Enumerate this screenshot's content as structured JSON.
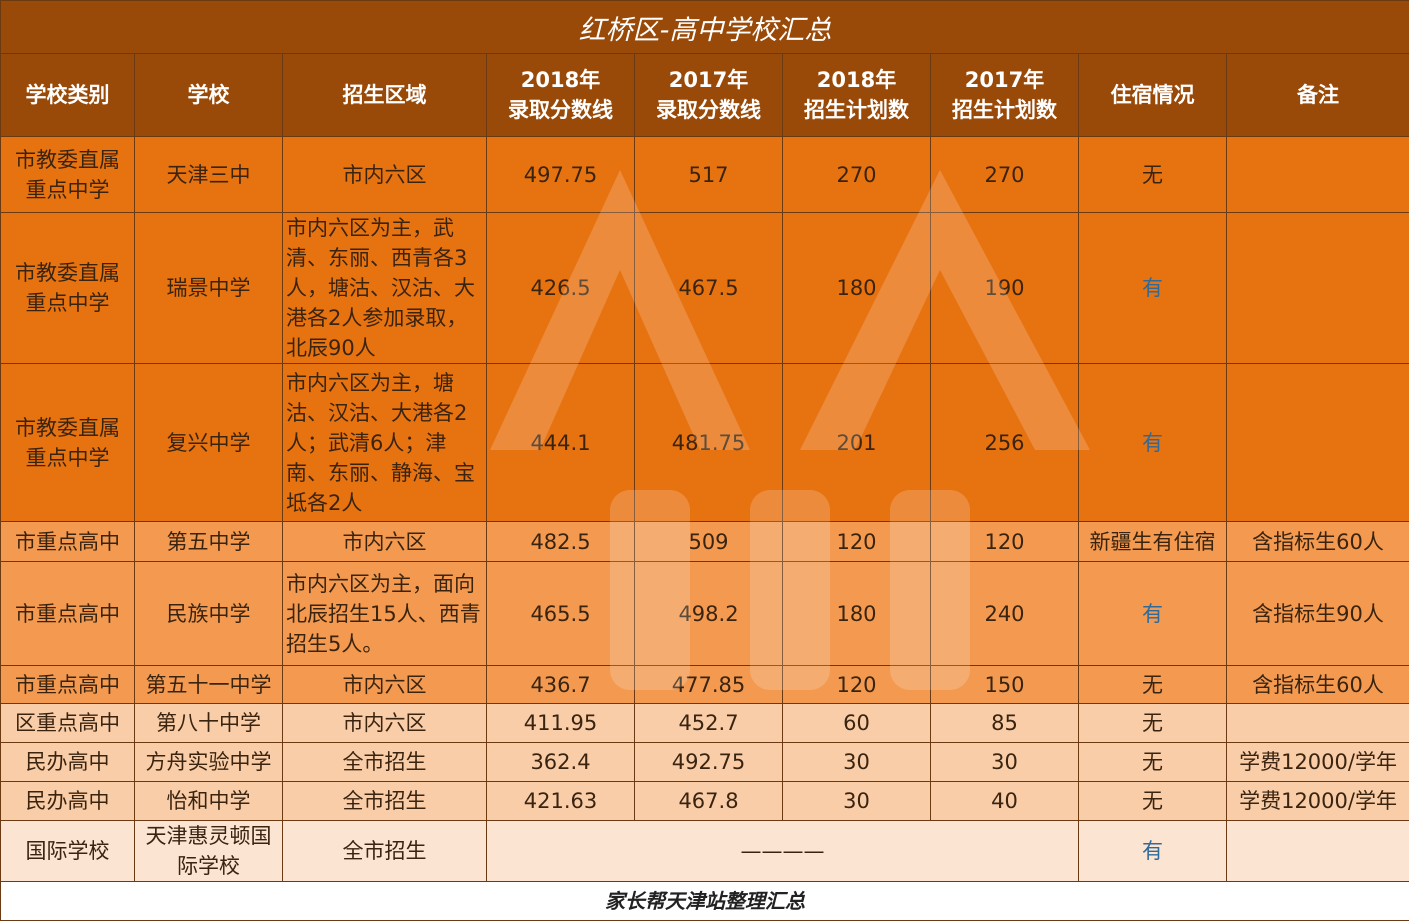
{
  "title": "红桥区-高中学校汇总",
  "headers": [
    {
      "line1": "学校类别",
      "line2": ""
    },
    {
      "line1": "学校",
      "line2": ""
    },
    {
      "line1": "招生区域",
      "line2": ""
    },
    {
      "line1": "2018年",
      "line2": "录取分数线"
    },
    {
      "line1": "2017年",
      "line2": "录取分数线"
    },
    {
      "line1": "2018年",
      "line2": "招生计划数"
    },
    {
      "line1": "2017年",
      "line2": "招生计划数"
    },
    {
      "line1": "住宿情况",
      "line2": ""
    },
    {
      "line1": "备注",
      "line2": ""
    }
  ],
  "rows": [
    {
      "category": "市教委直属重点中学",
      "school": "天津三中",
      "area": "市内六区",
      "score2018": "497.75",
      "score2017": "517",
      "plan2018": "270",
      "plan2017": "270",
      "lodging": "无",
      "note": ""
    },
    {
      "category": "市教委直属重点中学",
      "school": "瑞景中学",
      "area": "市内六区为主，武清、东丽、西青各3人，塘沽、汉沽、大港各2人参加录取，北辰90人",
      "score2018": "426.5",
      "score2017": "467.5",
      "plan2018": "180",
      "plan2017": "190",
      "lodging": "有",
      "note": ""
    },
    {
      "category": "市教委直属重点中学",
      "school": "复兴中学",
      "area": "市内六区为主，塘沽、汉沽、大港各2人；武清6人；津南、东丽、静海、宝坻各2人",
      "score2018": "444.1",
      "score2017": "481.75",
      "plan2018": "201",
      "plan2017": "256",
      "lodging": "有",
      "note": ""
    },
    {
      "category": "市重点高中",
      "school": "第五中学",
      "area": "市内六区",
      "score2018": "482.5",
      "score2017": "509",
      "plan2018": "120",
      "plan2017": "120",
      "lodging": "新疆生有住宿",
      "note": "含指标生60人"
    },
    {
      "category": "市重点高中",
      "school": "民族中学",
      "area": "市内六区为主，面向北辰招生15人、西青招生5人。",
      "score2018": "465.5",
      "score2017": "498.2",
      "plan2018": "180",
      "plan2017": "240",
      "lodging": "有",
      "note": "含指标生90人"
    },
    {
      "category": "市重点高中",
      "school": "第五十一中学",
      "area": "市内六区",
      "score2018": "436.7",
      "score2017": "477.85",
      "plan2018": "120",
      "plan2017": "150",
      "lodging": "无",
      "note": "含指标生60人"
    },
    {
      "category": "区重点高中",
      "school": "第八十中学",
      "area": "市内六区",
      "score2018": "411.95",
      "score2017": "452.7",
      "plan2018": "60",
      "plan2017": "85",
      "lodging": "无",
      "note": ""
    },
    {
      "category": "民办高中",
      "school": "方舟实验中学",
      "area": "全市招生",
      "score2018": "362.4",
      "score2017": "492.75",
      "plan2018": "30",
      "plan2017": "30",
      "lodging": "无",
      "note": "学费12000/学年"
    },
    {
      "category": "民办高中",
      "school": "怡和中学",
      "area": "全市招生",
      "score2018": "421.63",
      "score2017": "467.8",
      "plan2018": "30",
      "plan2017": "40",
      "lodging": "无",
      "note": "学费12000/学年"
    }
  ],
  "last_row": {
    "category": "国际学校",
    "school": "天津惠灵顿国际学校",
    "area": "全市招生",
    "merged": "————",
    "lodging": "有",
    "note": ""
  },
  "footer": "家长帮天津站整理汇总",
  "colors": {
    "header": "#9a4a08",
    "row_dark": "#e77210",
    "row_mid": "#f39a50",
    "row_pale": "#f9cda8",
    "row_lightest": "#fbe4d2",
    "lodging_blue": "#2f6a9a"
  }
}
